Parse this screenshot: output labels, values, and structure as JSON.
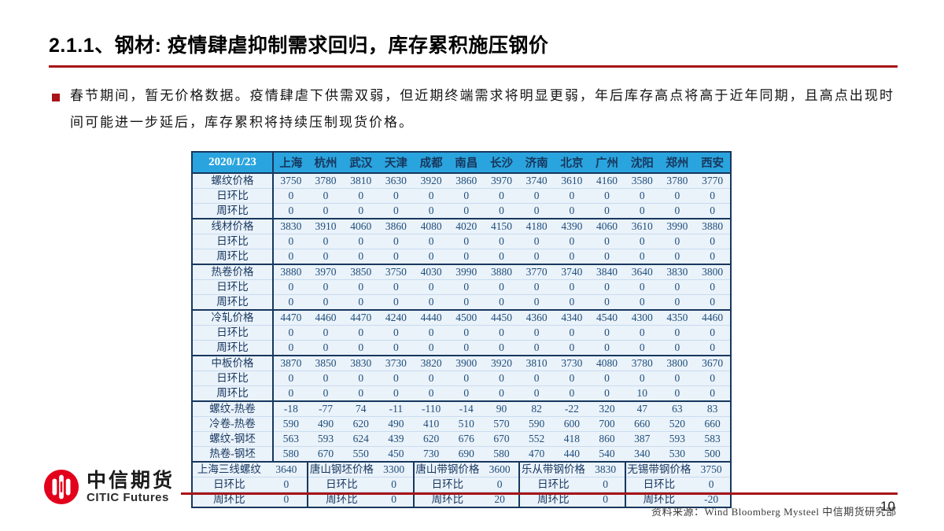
{
  "colors": {
    "accent_red": "#A81418",
    "header_blue": "#2AA4DE",
    "table_bg": "#EAF2FA",
    "border_navy": "#17375E",
    "number_blue": "#1F4E79",
    "logo_red": "#E3001B"
  },
  "header": {
    "title": "2.1.1、钢材: 疫情肆虐抑制需求回归，库存累积施压钢价"
  },
  "bullet": {
    "text": "春节期间，暂无价格数据。疫情肆虐下供需双弱，但近期终端需求将明显更弱，年后库存高点将高于近年同期，且高点出现时间可能进一步延后，库存累积将持续压制现货价格。"
  },
  "table": {
    "date": "2020/1/23",
    "cities": [
      "上海",
      "杭州",
      "武汉",
      "天津",
      "成都",
      "南昌",
      "长沙",
      "济南",
      "北京",
      "广州",
      "沈阳",
      "郑州",
      "西安"
    ],
    "sections": [
      {
        "rows": [
          {
            "label": "螺纹价格",
            "values": [
              3750,
              3780,
              3810,
              3630,
              3920,
              3860,
              3970,
              3740,
              3610,
              4160,
              3580,
              3780,
              3770
            ]
          },
          {
            "label": "日环比",
            "values": [
              0,
              0,
              0,
              0,
              0,
              0,
              0,
              0,
              0,
              0,
              0,
              0,
              0
            ]
          },
          {
            "label": "周环比",
            "values": [
              0,
              0,
              0,
              0,
              0,
              0,
              0,
              0,
              0,
              0,
              0,
              0,
              0
            ]
          }
        ]
      },
      {
        "rows": [
          {
            "label": "线材价格",
            "values": [
              3830,
              3910,
              4060,
              3860,
              4080,
              4020,
              4150,
              4180,
              4390,
              4060,
              3610,
              3990,
              3880
            ]
          },
          {
            "label": "日环比",
            "values": [
              0,
              0,
              0,
              0,
              0,
              0,
              0,
              0,
              0,
              0,
              0,
              0,
              0
            ]
          },
          {
            "label": "周环比",
            "values": [
              0,
              0,
              0,
              0,
              0,
              0,
              0,
              0,
              0,
              0,
              0,
              0,
              0
            ]
          }
        ]
      },
      {
        "rows": [
          {
            "label": "热卷价格",
            "values": [
              3880,
              3970,
              3850,
              3750,
              4030,
              3990,
              3880,
              3770,
              3740,
              3840,
              3640,
              3830,
              3800
            ]
          },
          {
            "label": "日环比",
            "values": [
              0,
              0,
              0,
              0,
              0,
              0,
              0,
              0,
              0,
              0,
              0,
              0,
              0
            ]
          },
          {
            "label": "周环比",
            "values": [
              0,
              0,
              0,
              0,
              0,
              0,
              0,
              0,
              0,
              0,
              0,
              0,
              0
            ]
          }
        ]
      },
      {
        "rows": [
          {
            "label": "冷轧价格",
            "values": [
              4470,
              4460,
              4470,
              4240,
              4440,
              4500,
              4450,
              4360,
              4340,
              4540,
              4300,
              4350,
              4460
            ]
          },
          {
            "label": "日环比",
            "values": [
              0,
              0,
              0,
              0,
              0,
              0,
              0,
              0,
              0,
              0,
              0,
              0,
              0
            ]
          },
          {
            "label": "周环比",
            "values": [
              0,
              0,
              0,
              0,
              0,
              0,
              0,
              0,
              0,
              0,
              0,
              0,
              0
            ]
          }
        ]
      },
      {
        "rows": [
          {
            "label": "中板价格",
            "values": [
              3870,
              3850,
              3830,
              3730,
              3820,
              3900,
              3920,
              3810,
              3730,
              4080,
              3780,
              3800,
              3670
            ]
          },
          {
            "label": "日环比",
            "values": [
              0,
              0,
              0,
              0,
              0,
              0,
              0,
              0,
              0,
              0,
              0,
              0,
              0
            ]
          },
          {
            "label": "周环比",
            "values": [
              0,
              0,
              0,
              0,
              0,
              0,
              0,
              0,
              0,
              0,
              10,
              0,
              0
            ]
          }
        ]
      }
    ],
    "spreads": [
      {
        "label": "螺纹-热卷",
        "values": [
          -18,
          -77,
          74,
          -11,
          -110,
          -14,
          90,
          82,
          -22,
          320,
          47,
          63,
          83
        ]
      },
      {
        "label": "冷卷-热卷",
        "values": [
          590,
          490,
          620,
          490,
          410,
          510,
          570,
          590,
          600,
          700,
          660,
          520,
          660
        ]
      },
      {
        "label": "螺纹-钢坯",
        "values": [
          563,
          593,
          624,
          439,
          620,
          676,
          670,
          552,
          418,
          860,
          387,
          593,
          583
        ]
      },
      {
        "label": "热卷-钢坯",
        "values": [
          580,
          670,
          550,
          450,
          730,
          690,
          580,
          470,
          440,
          540,
          340,
          530,
          500
        ]
      }
    ],
    "bottom_tables": [
      {
        "rows": [
          [
            "上海三线螺纹",
            "3640"
          ],
          [
            "日环比",
            "0"
          ],
          [
            "周环比",
            "0"
          ]
        ]
      },
      {
        "rows": [
          [
            "唐山钢坯价格",
            "3300"
          ],
          [
            "日环比",
            "0"
          ],
          [
            "周环比",
            "0"
          ]
        ]
      },
      {
        "rows": [
          [
            "唐山带钢价格",
            "3600"
          ],
          [
            "日环比",
            "0"
          ],
          [
            "周环比",
            "20"
          ]
        ]
      },
      {
        "rows": [
          [
            "乐从带钢价格",
            "3830"
          ],
          [
            "日环比",
            "0"
          ],
          [
            "周环比",
            "0"
          ]
        ]
      },
      {
        "rows": [
          [
            "无锡带钢价格",
            "3750"
          ],
          [
            "日环比",
            "0"
          ],
          [
            "周环比",
            "-20"
          ]
        ]
      }
    ]
  },
  "logo": {
    "name_cn": "中信期货",
    "name_en": "CITIC Futures"
  },
  "footer": {
    "source": "资料来源：Wind Bloomberg Mysteel 中信期货研究部",
    "page": "10"
  }
}
